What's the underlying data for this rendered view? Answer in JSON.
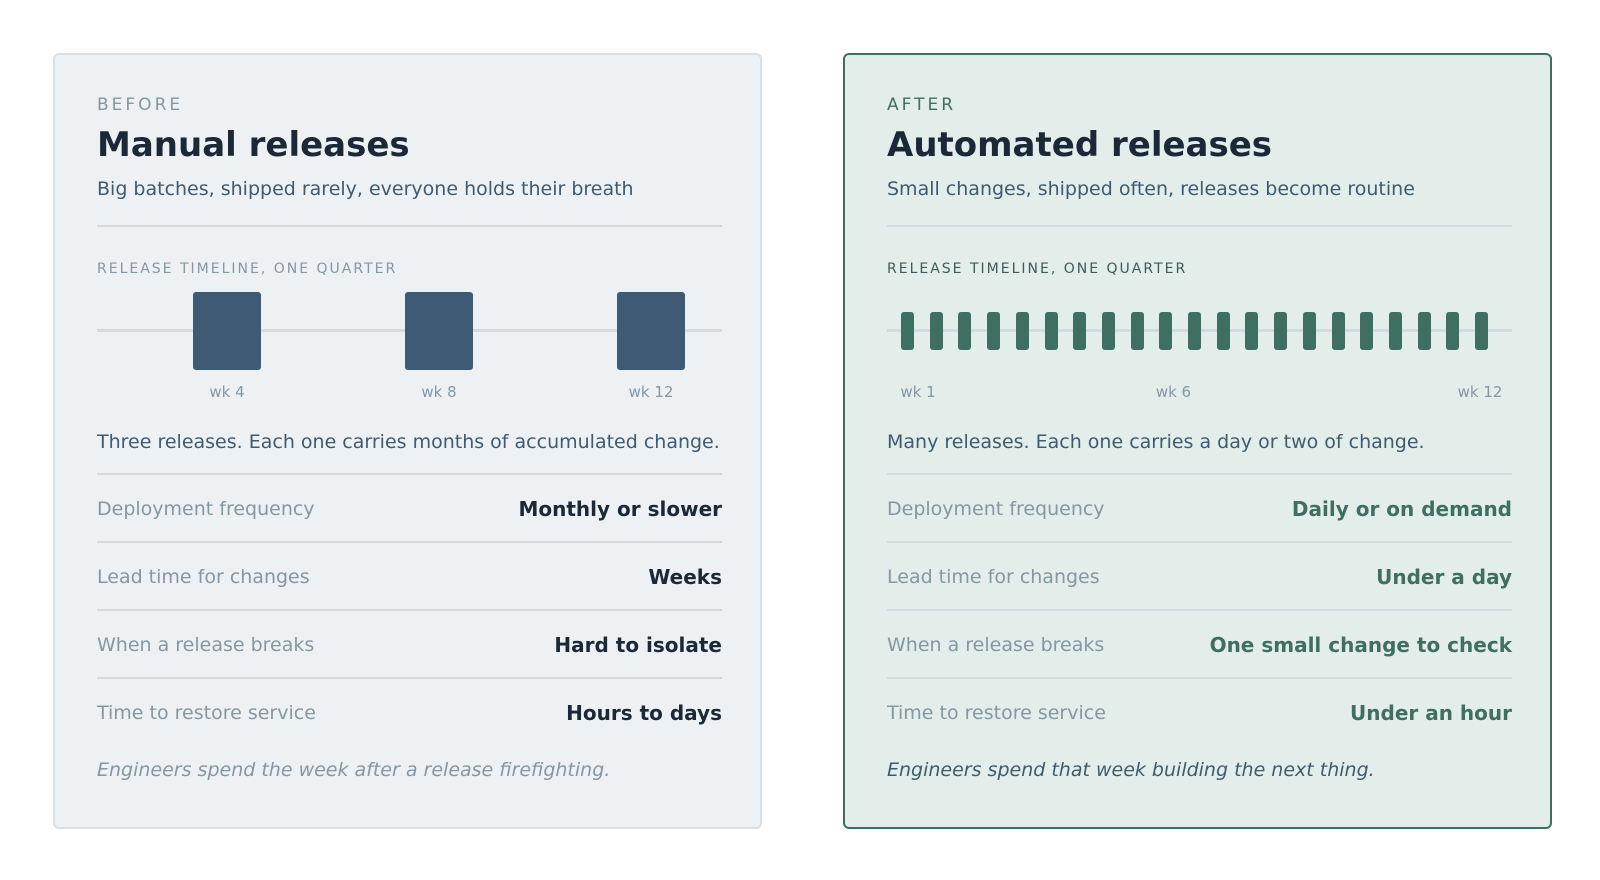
{
  "before": {
    "eyebrow": "BEFORE",
    "title": "Manual releases",
    "subtitle": "Big batches, shipped rarely, everyone holds their breath",
    "timeline_label": "RELEASE TIMELINE, ONE QUARTER",
    "timeline": {
      "weeks_total": 12,
      "releases_at_week": [
        4,
        8,
        12
      ],
      "tick_labels": [
        {
          "week": 4,
          "label": "wk 4"
        },
        {
          "week": 8,
          "label": "wk 8"
        },
        {
          "week": 12,
          "label": "wk 12"
        }
      ],
      "block_color": "#3e5a74"
    },
    "caption": "Three releases. Each one carries months of accumulated change.",
    "metrics": [
      {
        "label": "Deployment frequency",
        "value": "Monthly or slower"
      },
      {
        "label": "Lead time for changes",
        "value": "Weeks"
      },
      {
        "label": "When a release breaks",
        "value": "Hard to isolate"
      },
      {
        "label": "Time to restore service",
        "value": "Hours to days"
      }
    ],
    "footer": "Engineers spend the week after a release firefighting."
  },
  "after": {
    "eyebrow": "AFTER",
    "title": "Automated releases",
    "subtitle": "Small changes, shipped often, releases become routine",
    "timeline_label": "RELEASE TIMELINE, ONE QUARTER",
    "timeline": {
      "release_count": 21,
      "tick_labels": [
        {
          "week": 1,
          "label": "wk 1"
        },
        {
          "week": 6,
          "label": "wk 6"
        },
        {
          "week": 12,
          "label": "wk 12"
        }
      ],
      "block_color": "#3f6f63"
    },
    "caption": "Many releases. Each one carries a day or two of change.",
    "metrics": [
      {
        "label": "Deployment frequency",
        "value": "Daily or on demand"
      },
      {
        "label": "Lead time for changes",
        "value": "Under a day"
      },
      {
        "label": "When a release breaks",
        "value": "One small change to check"
      },
      {
        "label": "Time to restore service",
        "value": "Under an hour"
      }
    ],
    "footer": "Engineers spend that week building the next thing."
  }
}
